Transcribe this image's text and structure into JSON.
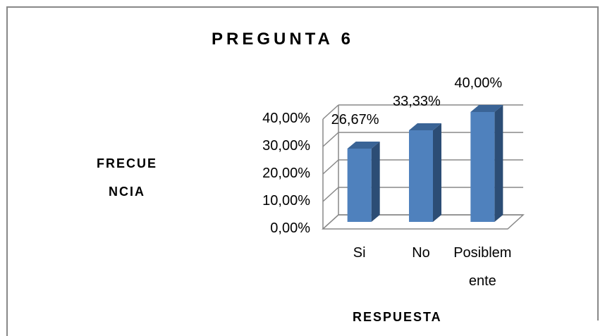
{
  "chart_data": {
    "type": "bar3d",
    "title": "PREGUNTA 6",
    "xlabel": "RESPUESTA",
    "ylabel": "FRECUENCIA",
    "categories": [
      "Si",
      "No",
      "Posiblemente"
    ],
    "values": [
      26.67,
      33.33,
      40
    ],
    "value_labels": [
      "26,67%",
      "33,33%",
      "40,00%"
    ],
    "color": "#4f81bd",
    "ylim": [
      0,
      40
    ],
    "yticks": [
      {
        "value": 0,
        "label": "0,00%"
      },
      {
        "value": 10,
        "label": "10,00%"
      },
      {
        "value": 20,
        "label": "20,00%"
      },
      {
        "value": 30,
        "label": "30,00%"
      },
      {
        "value": 40,
        "label": "40,00%"
      }
    ],
    "grid": true
  }
}
